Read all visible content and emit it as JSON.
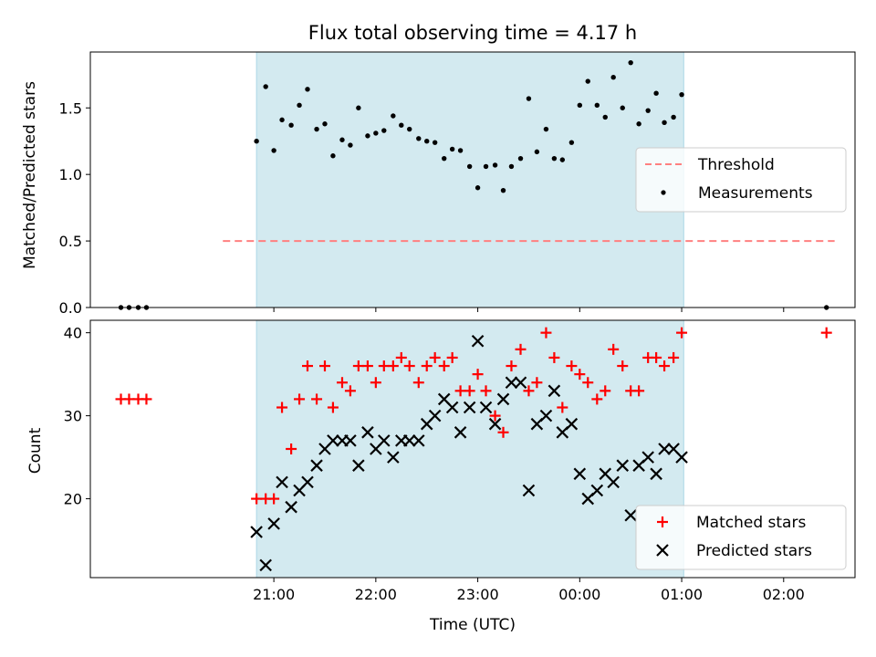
{
  "chart_data": [
    {
      "type": "scatter",
      "title": "Flux total observing time = 4.17 h",
      "ylabel": "Matched/Predicted stars",
      "xlabel": "",
      "x_unit": "hours since 2023-10-09 20:00 UTC",
      "xlim": [
        -0.8,
        6.7
      ],
      "ylim": [
        0,
        1.92
      ],
      "yticks": [
        0.0,
        0.5,
        1.0,
        1.5
      ],
      "ytick_labels": [
        "0.0",
        "0.5",
        "1.0",
        "1.5"
      ],
      "observing_window": [
        0.83,
        5.02
      ],
      "legend": {
        "position": "center-right"
      },
      "series": [
        {
          "name": "Threshold",
          "kind": "line",
          "style": "dashed",
          "color": "#ff8080",
          "x": [
            0.5,
            6.5
          ],
          "y": [
            0.5,
            0.5
          ]
        },
        {
          "name": "Measurements",
          "kind": "scatter",
          "color": "#000000",
          "x": [
            -0.5,
            -0.42,
            -0.33,
            -0.25,
            0.83,
            0.92,
            1.0,
            1.08,
            1.17,
            1.25,
            1.33,
            1.42,
            1.5,
            1.58,
            1.67,
            1.75,
            1.83,
            1.92,
            2.0,
            2.08,
            2.17,
            2.25,
            2.33,
            2.42,
            2.5,
            2.58,
            2.67,
            2.75,
            2.83,
            2.92,
            3.0,
            3.08,
            3.17,
            3.25,
            3.33,
            3.42,
            3.5,
            3.58,
            3.67,
            3.75,
            3.83,
            3.92,
            4.0,
            4.08,
            4.17,
            4.25,
            4.33,
            4.42,
            4.5,
            4.58,
            4.67,
            4.75,
            4.83,
            4.92,
            5.0,
            6.42
          ],
          "y": [
            0,
            0,
            0,
            0,
            1.25,
            1.66,
            1.18,
            1.41,
            1.37,
            1.52,
            1.64,
            1.34,
            1.38,
            1.14,
            1.26,
            1.22,
            1.5,
            1.29,
            1.31,
            1.33,
            1.44,
            1.37,
            1.34,
            1.27,
            1.25,
            1.24,
            1.12,
            1.19,
            1.18,
            1.06,
            0.9,
            1.06,
            1.07,
            0.88,
            1.06,
            1.12,
            1.57,
            1.17,
            1.34,
            1.12,
            1.11,
            1.24,
            1.52,
            1.7,
            1.52,
            1.43,
            1.73,
            1.5,
            1.84,
            1.38,
            1.48,
            1.61,
            1.39,
            1.43,
            1.6,
            0
          ]
        }
      ]
    },
    {
      "type": "scatter",
      "title": "",
      "ylabel": "Count",
      "xlabel": "Time (UTC)",
      "x_unit": "hours since 2023-10-09 20:00 UTC",
      "xlim": [
        -0.8,
        6.7
      ],
      "ylim": [
        10.5,
        41.5
      ],
      "yticks": [
        20,
        30,
        40
      ],
      "ytick_labels": [
        "20",
        "30",
        "40"
      ],
      "xticks": [
        1,
        2,
        3,
        4,
        5,
        6
      ],
      "xtick_labels": [
        "21:00",
        "22:00",
        "23:00",
        "00:00",
        "01:00",
        "02:00"
      ],
      "observing_window": [
        0.83,
        5.02
      ],
      "legend": {
        "position": "bottom-right"
      },
      "series": [
        {
          "name": "Matched stars",
          "marker": "plus",
          "color": "#ff0000",
          "x": [
            -0.5,
            -0.42,
            -0.33,
            -0.25,
            0.83,
            0.92,
            1.0,
            1.08,
            1.17,
            1.25,
            1.33,
            1.42,
            1.5,
            1.58,
            1.67,
            1.75,
            1.83,
            1.92,
            2.0,
            2.08,
            2.17,
            2.25,
            2.33,
            2.42,
            2.5,
            2.58,
            2.67,
            2.75,
            2.83,
            2.92,
            3.0,
            3.08,
            3.17,
            3.25,
            3.33,
            3.42,
            3.5,
            3.58,
            3.67,
            3.75,
            3.83,
            3.92,
            4.0,
            4.08,
            4.17,
            4.25,
            4.33,
            4.42,
            4.5,
            4.58,
            4.67,
            4.75,
            4.83,
            4.92,
            5.0,
            6.42
          ],
          "y": [
            32,
            32,
            32,
            32,
            20,
            20,
            20,
            31,
            26,
            32,
            36,
            32,
            36,
            31,
            34,
            33,
            36,
            36,
            34,
            36,
            36,
            37,
            36,
            34,
            36,
            37,
            36,
            37,
            33,
            33,
            35,
            33,
            30,
            28,
            36,
            38,
            33,
            34,
            40,
            37,
            31,
            36,
            35,
            34,
            32,
            33,
            38,
            36,
            33,
            33,
            37,
            37,
            36,
            37,
            40,
            40
          ]
        },
        {
          "name": "Predicted stars",
          "marker": "x",
          "color": "#000000",
          "x": [
            0.83,
            0.92,
            1.0,
            1.08,
            1.17,
            1.25,
            1.33,
            1.42,
            1.5,
            1.58,
            1.67,
            1.75,
            1.83,
            1.92,
            2.0,
            2.08,
            2.17,
            2.25,
            2.33,
            2.42,
            2.5,
            2.58,
            2.67,
            2.75,
            2.83,
            2.92,
            3.0,
            3.08,
            3.17,
            3.25,
            3.33,
            3.42,
            3.5,
            3.58,
            3.67,
            3.75,
            3.83,
            3.92,
            4.0,
            4.08,
            4.17,
            4.25,
            4.33,
            4.42,
            4.5,
            4.58,
            4.67,
            4.75,
            4.83,
            4.92,
            5.0
          ],
          "y": [
            16,
            12,
            17,
            22,
            19,
            21,
            22,
            24,
            26,
            27,
            27,
            27,
            24,
            28,
            26,
            27,
            25,
            27,
            27,
            27,
            29,
            30,
            32,
            31,
            28,
            31,
            39,
            31,
            29,
            32,
            34,
            34,
            21,
            29,
            30,
            33,
            28,
            29,
            23,
            20,
            21,
            23,
            22,
            24,
            18,
            24,
            25,
            23,
            26,
            26,
            25
          ]
        }
      ]
    }
  ],
  "colors": {
    "observing_window": "#d3eaf0",
    "observing_window_edge": "#add8e6"
  }
}
